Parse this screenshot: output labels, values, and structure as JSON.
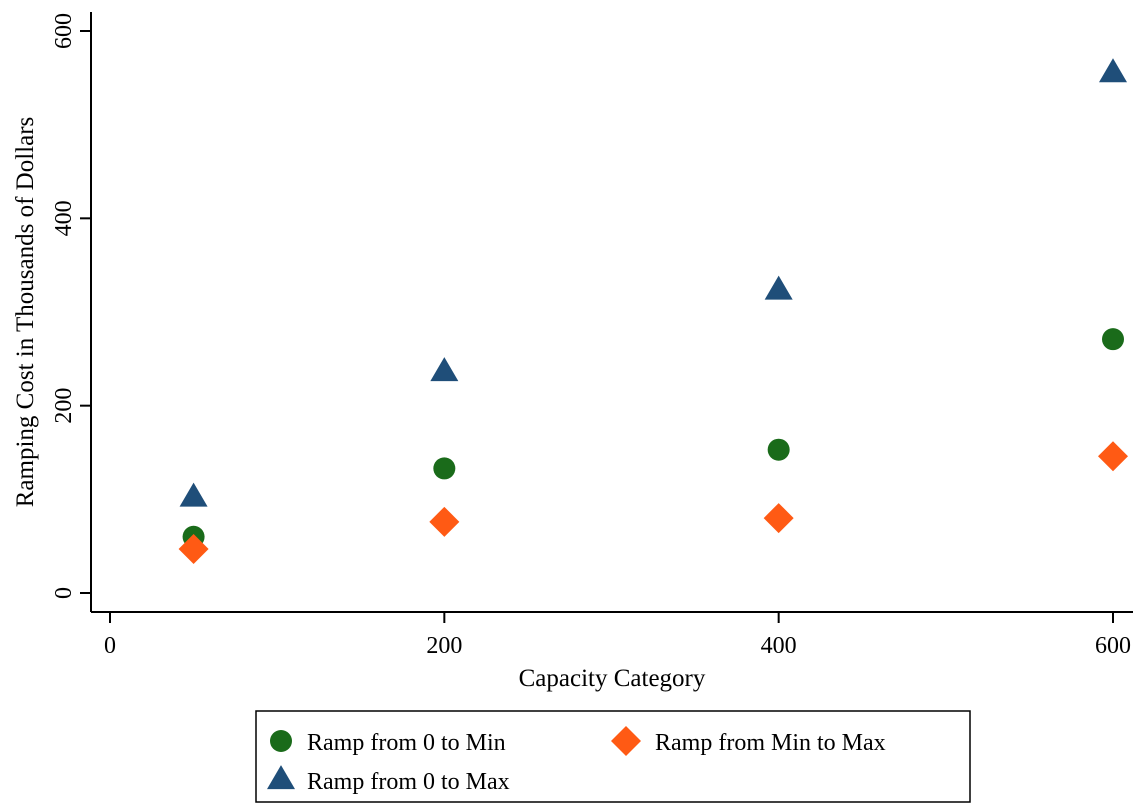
{
  "chart_data": {
    "type": "scatter",
    "title": "",
    "xlabel": "Capacity Category",
    "ylabel": "Ramping Cost in Thousands of Dollars",
    "xlim": [
      0,
      600
    ],
    "ylim": [
      0,
      600
    ],
    "x_ticks": [
      0,
      200,
      400,
      600
    ],
    "y_ticks": [
      0,
      200,
      400,
      600
    ],
    "grid": false,
    "legend_position": "bottom",
    "series": [
      {
        "name": "Ramp from 0 to Min",
        "marker": "circle",
        "color": "#1a6b1a",
        "points": [
          {
            "x": 50,
            "y": 60
          },
          {
            "x": 200,
            "y": 133
          },
          {
            "x": 400,
            "y": 153
          },
          {
            "x": 600,
            "y": 271
          }
        ]
      },
      {
        "name": "Ramp from Min to Max",
        "marker": "diamond",
        "color": "#ff5a14",
        "points": [
          {
            "x": 50,
            "y": 47
          },
          {
            "x": 200,
            "y": 76
          },
          {
            "x": 400,
            "y": 80
          },
          {
            "x": 600,
            "y": 146
          }
        ]
      },
      {
        "name": "Ramp from 0 to Max",
        "marker": "triangle",
        "color": "#1f4e79",
        "points": [
          {
            "x": 50,
            "y": 102
          },
          {
            "x": 200,
            "y": 236
          },
          {
            "x": 400,
            "y": 323
          },
          {
            "x": 600,
            "y": 555
          }
        ]
      }
    ]
  }
}
